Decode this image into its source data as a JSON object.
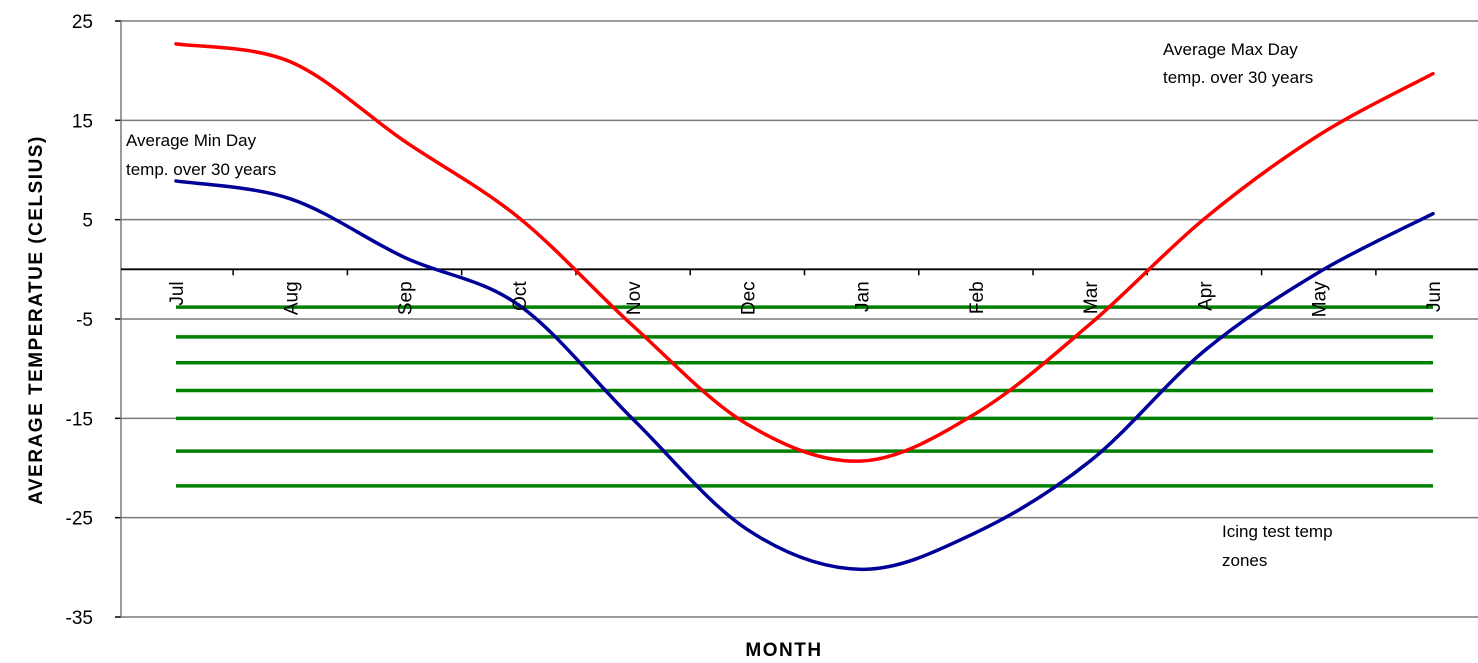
{
  "chart_data": {
    "type": "line",
    "title": "",
    "xlabel": "MONTH",
    "ylabel": "AVERAGE TEMPERATUE (CELSIUS)",
    "categories": [
      "Jul",
      "Aug",
      "Sep",
      "Oct",
      "Nov",
      "Dec",
      "Jan",
      "Feb",
      "Mar",
      "Apr",
      "May",
      "Jun"
    ],
    "ylim": [
      -35,
      25
    ],
    "yticks": [
      25,
      15,
      5,
      -5,
      -15,
      -25,
      -35
    ],
    "grid": true,
    "series": [
      {
        "color": "#ff0000",
        "values": [
          22.7,
          20.9,
          12.9,
          5.2,
          -5.7,
          -15.6,
          -19.3,
          -14.5,
          -5.5,
          5.1,
          13.5,
          19.7
        ]
      },
      {
        "color": "#000099",
        "values": [
          8.9,
          7.1,
          1.2,
          -3.6,
          -15.1,
          -26.2,
          -30.2,
          -26.5,
          -19.3,
          -8.2,
          -0.3,
          5.6
        ]
      }
    ],
    "bands": {
      "label": "Icing test temp zones",
      "color": "#008000",
      "values": [
        -3.8,
        -6.8,
        -9.4,
        -12.2,
        -15.0,
        -18.3,
        -21.8
      ]
    },
    "annotations": [
      {
        "id": "max",
        "lines": [
          "Average Max Day",
          "temp. over 30 years"
        ]
      },
      {
        "id": "min",
        "lines": [
          "Average Min Day",
          "temp. over 30 years"
        ]
      },
      {
        "id": "icing",
        "lines": [
          "Icing test temp",
          "zones"
        ]
      }
    ]
  }
}
